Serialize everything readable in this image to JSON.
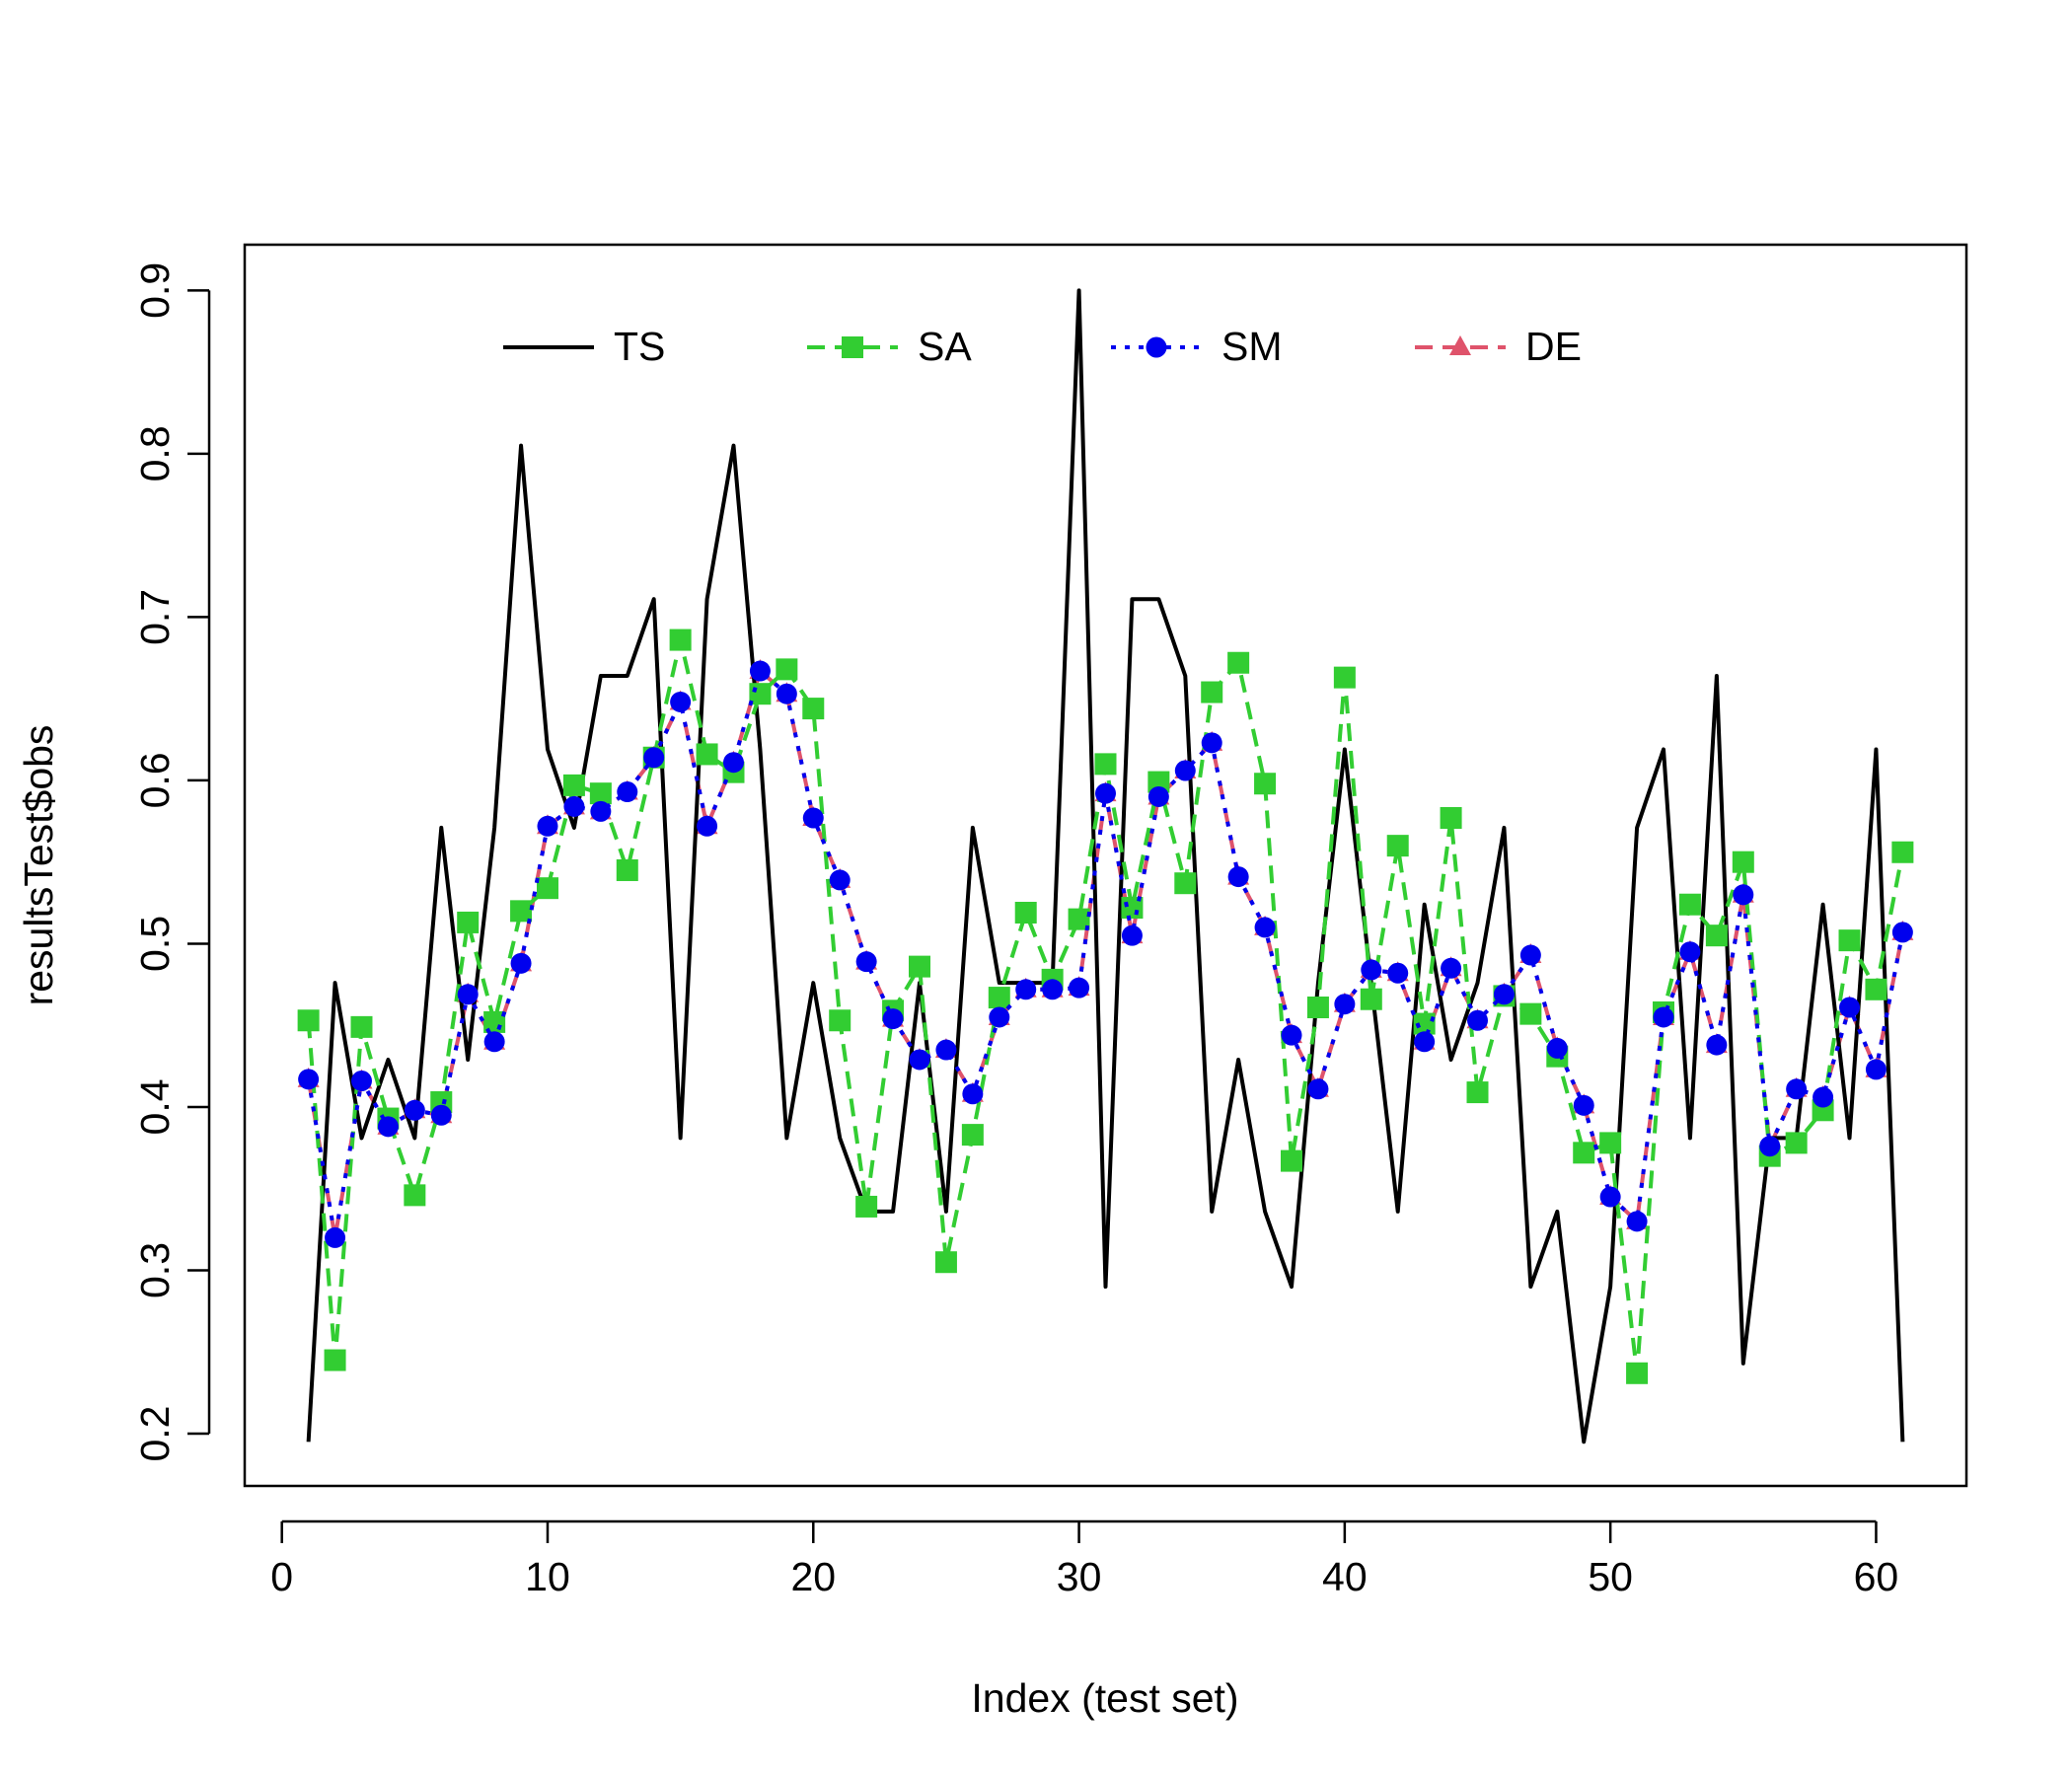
{
  "chart_data": {
    "type": "line",
    "xlabel": "Index (test set)",
    "ylabel": "resultsTest$obs",
    "x": [
      1,
      2,
      3,
      4,
      5,
      6,
      7,
      8,
      9,
      10,
      11,
      12,
      13,
      14,
      15,
      16,
      17,
      18,
      19,
      20,
      21,
      22,
      23,
      24,
      25,
      26,
      27,
      28,
      29,
      30,
      31,
      32,
      33,
      34,
      35,
      36,
      37,
      38,
      39,
      40,
      41,
      42,
      43,
      44,
      45,
      46,
      47,
      48,
      49,
      50,
      51,
      52,
      53,
      54,
      55,
      56,
      57,
      58,
      59,
      60,
      61
    ],
    "series": [
      {
        "name": "DE",
        "color": "#df536b",
        "linestyle": "dashed",
        "marker": "triangle",
        "values": [
          0.417,
          0.32,
          0.416,
          0.388,
          0.398,
          0.395,
          0.469,
          0.44,
          0.488,
          0.572,
          0.584,
          0.581,
          0.593,
          0.614,
          0.648,
          0.572,
          0.611,
          0.667,
          0.653,
          0.577,
          0.539,
          0.489,
          0.454,
          0.429,
          0.435,
          0.408,
          0.455,
          0.472,
          0.472,
          0.473,
          0.592,
          0.505,
          0.59,
          0.606,
          0.623,
          0.541,
          0.51,
          0.444,
          0.411,
          0.463,
          0.484,
          0.482,
          0.44,
          0.485,
          0.453,
          0.469,
          0.493,
          0.436,
          0.401,
          0.345,
          0.33,
          0.455,
          0.495,
          0.438,
          0.53,
          0.376,
          0.411,
          0.406,
          0.461,
          0.423,
          0.507
        ]
      },
      {
        "name": "TS",
        "color": "#000000",
        "linestyle": "solid",
        "marker": null,
        "values": [
          0.195,
          0.476,
          0.381,
          0.429,
          0.381,
          0.571,
          0.429,
          0.571,
          0.805,
          0.619,
          0.571,
          0.664,
          0.664,
          0.711,
          0.381,
          0.711,
          0.805,
          0.619,
          0.381,
          0.476,
          0.381,
          0.336,
          0.336,
          0.476,
          0.336,
          0.571,
          0.476,
          0.476,
          0.476,
          0.9,
          0.29,
          0.711,
          0.711,
          0.664,
          0.336,
          0.429,
          0.336,
          0.29,
          0.476,
          0.619,
          0.476,
          0.336,
          0.524,
          0.429,
          0.476,
          0.571,
          0.29,
          0.336,
          0.195,
          0.29,
          0.571,
          0.619,
          0.381,
          0.664,
          0.243,
          0.381,
          0.381,
          0.524,
          0.381,
          0.619,
          0.195
        ]
      },
      {
        "name": "SA",
        "color": "#32cd32",
        "linestyle": "dashed",
        "marker": "square",
        "values": [
          0.453,
          0.245,
          0.449,
          0.393,
          0.346,
          0.403,
          0.513,
          0.452,
          0.52,
          0.534,
          0.597,
          0.592,
          0.545,
          0.614,
          0.686,
          0.616,
          0.605,
          0.653,
          0.668,
          0.644,
          0.453,
          0.339,
          0.459,
          0.486,
          0.305,
          0.383,
          0.467,
          0.519,
          0.478,
          0.515,
          0.61,
          0.522,
          0.599,
          0.537,
          0.654,
          0.672,
          0.598,
          0.367,
          0.461,
          0.663,
          0.466,
          0.56,
          0.451,
          0.577,
          0.409,
          0.468,
          0.457,
          0.431,
          0.372,
          0.378,
          0.237,
          0.458,
          0.524,
          0.505,
          0.55,
          0.37,
          0.378,
          0.398,
          0.502,
          0.472,
          0.556
        ]
      },
      {
        "name": "SM",
        "color": "#0000ee",
        "linestyle": "dotted",
        "marker": "circle",
        "values": [
          0.417,
          0.32,
          0.416,
          0.388,
          0.398,
          0.395,
          0.469,
          0.44,
          0.488,
          0.572,
          0.584,
          0.581,
          0.593,
          0.614,
          0.648,
          0.572,
          0.611,
          0.667,
          0.653,
          0.577,
          0.539,
          0.489,
          0.454,
          0.429,
          0.435,
          0.408,
          0.455,
          0.472,
          0.472,
          0.473,
          0.592,
          0.505,
          0.59,
          0.606,
          0.623,
          0.541,
          0.51,
          0.444,
          0.411,
          0.463,
          0.484,
          0.482,
          0.44,
          0.485,
          0.453,
          0.469,
          0.493,
          0.436,
          0.401,
          0.345,
          0.33,
          0.455,
          0.495,
          0.438,
          0.53,
          0.376,
          0.411,
          0.406,
          0.461,
          0.423,
          0.507
        ]
      }
    ],
    "legend_order": [
      "TS",
      "SA",
      "SM",
      "DE"
    ],
    "xlim": [
      -1.4,
      63.4
    ],
    "xticks": [
      0,
      10,
      20,
      30,
      40,
      50,
      60
    ],
    "ylim": [
      0.168,
      0.928
    ],
    "yticks": [
      0.2,
      0.3,
      0.4,
      0.5,
      0.6,
      0.7,
      0.8,
      0.9
    ],
    "legend": "top",
    "grid": false
  }
}
